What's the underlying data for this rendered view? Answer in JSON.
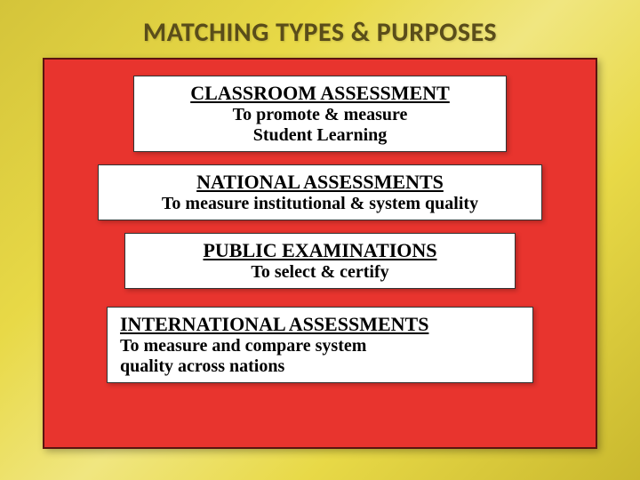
{
  "title": "MATCHING TYPES & PURPOSES",
  "colors": {
    "background_gradient": [
      "#d4c43a",
      "#e8d947",
      "#f0e680",
      "#e8d947",
      "#c9b82e"
    ],
    "panel_bg": "#e8342e",
    "panel_border": "#5a1410",
    "box_bg": "#ffffff",
    "box_border": "#333333",
    "title_color": "#5a4d1a",
    "text_color": "#000000"
  },
  "boxes": [
    {
      "heading": "CLASSROOM ASSESSMENT",
      "line1": "To promote & measure",
      "line2": "Student Learning"
    },
    {
      "heading": "NATIONAL ASSESSMENTS",
      "line1": "To measure institutional & system quality"
    },
    {
      "heading": "PUBLIC EXAMINATIONS",
      "line1": "To select & certify"
    },
    {
      "heading": "INTERNATIONAL ASSESSMENTS",
      "line1": "To measure and compare system",
      "line2": "quality across nations"
    }
  ]
}
